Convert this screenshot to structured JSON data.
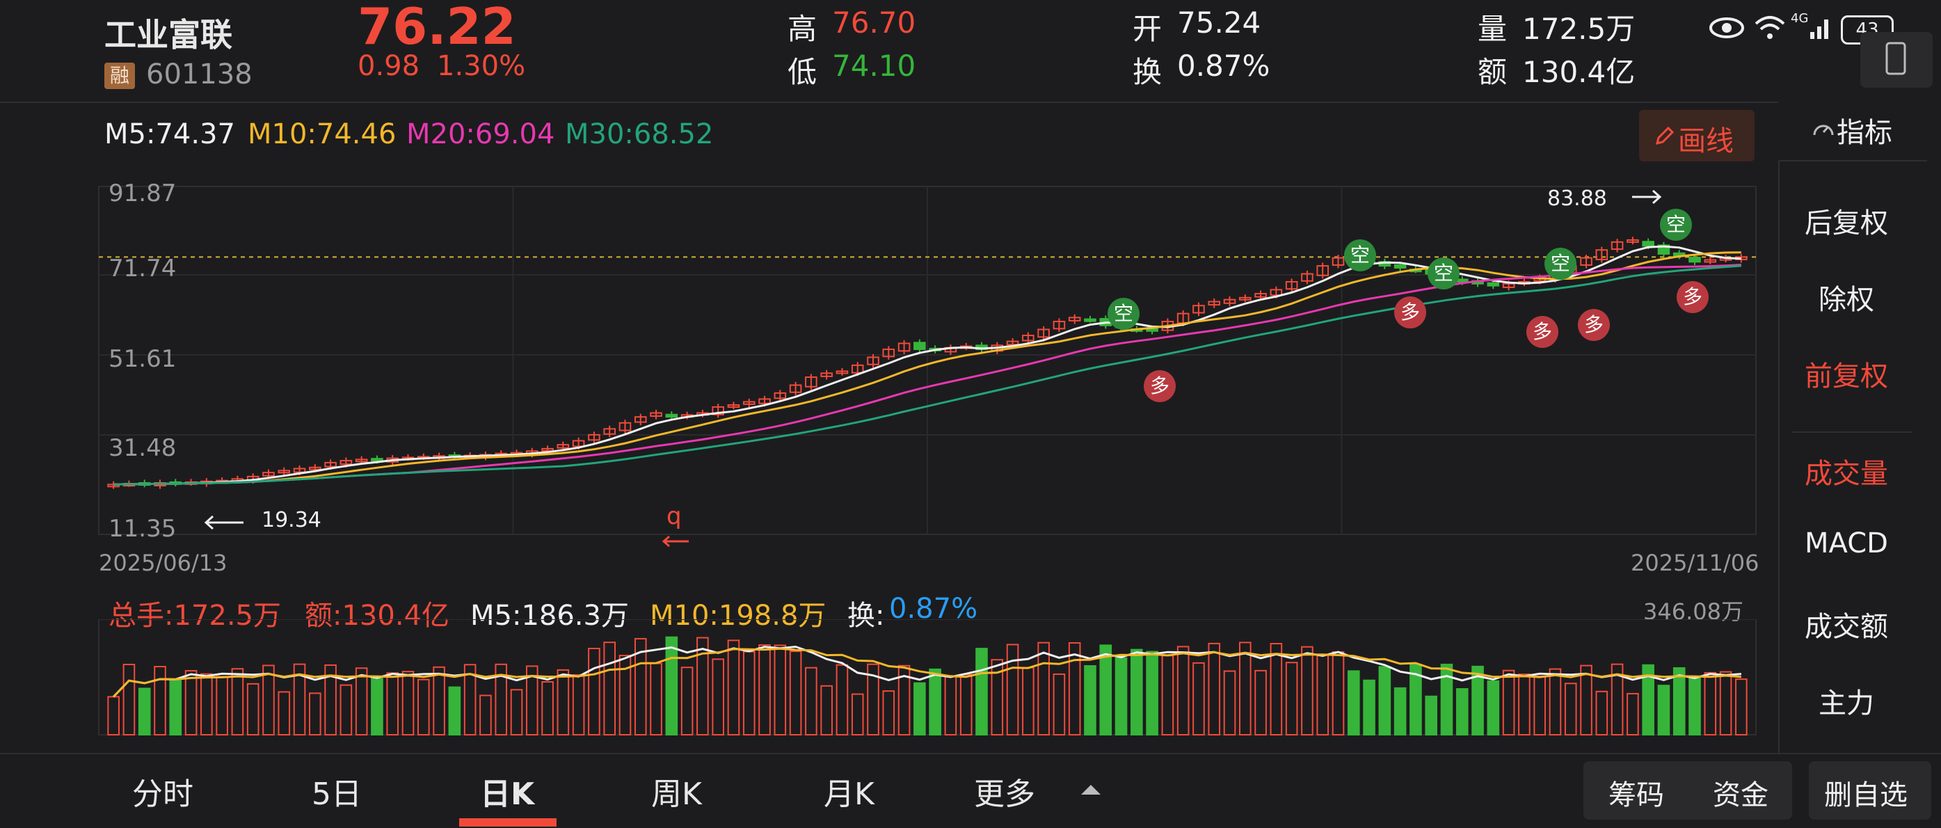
{
  "header": {
    "stock_name": "工业富联",
    "margin_badge": "融",
    "stock_code": "601138",
    "price": "76.22",
    "change": "0.98",
    "change_pct": "1.30%",
    "high_label": "高",
    "high_value": "76.70",
    "low_label": "低",
    "low_value": "74.10",
    "open_label": "开",
    "open_value": "75.24",
    "turnover_label": "换",
    "turnover_value": "0.87%",
    "volume_label": "量",
    "volume_value": "172.5万",
    "amount_label": "额",
    "amount_value": "130.4亿"
  },
  "status_bar": {
    "battery": "43",
    "signal": "4G"
  },
  "ma_legend": {
    "m5": "M5:74.37",
    "m10": "M10:74.46",
    "m20": "M20:69.04",
    "m30": "M30:68.52"
  },
  "toolbar": {
    "draw_label": "画线",
    "indicator_label": "指标"
  },
  "sidebar": {
    "items": [
      "后复权",
      "除权",
      "前复权",
      "成交量",
      "MACD",
      "成交额",
      "主力"
    ]
  },
  "chart_data": [
    {
      "type": "candlestick",
      "y_ticks": [
        "91.87",
        "71.74",
        "51.61",
        "31.48",
        "11.35"
      ],
      "ylim": [
        11.35,
        91.87
      ],
      "x_start": "2025/06/13",
      "x_end": "2025/11/06",
      "high_annotation": "83.88",
      "low_annotation": "19.34",
      "marker_q": "q",
      "signals_long": "多",
      "signals_short": "空",
      "close": [
        19,
        19.2,
        19.1,
        19.4,
        19.3,
        19.6,
        19.8,
        20,
        20.4,
        21,
        22,
        22.5,
        23,
        23.3,
        24.5,
        25,
        25.3,
        25.1,
        25.6,
        25.8,
        26,
        26.2,
        26.1,
        26.3,
        26.5,
        26.8,
        27,
        27.4,
        28,
        29,
        30,
        31.5,
        33,
        34.5,
        36,
        37,
        36,
        36.5,
        37,
        38.5,
        39,
        39.8,
        40.5,
        42,
        44,
        46,
        47,
        47.5,
        49,
        51,
        53,
        54.5,
        53,
        52.8,
        53.4,
        53.8,
        53,
        54,
        55,
        56.5,
        58,
        60,
        61,
        60.5,
        59,
        58.5,
        58,
        57.6,
        60,
        62,
        64,
        65,
        65.5,
        66,
        67,
        68,
        70,
        72,
        74,
        76,
        75.5,
        74.8,
        74,
        73.5,
        73,
        72,
        71,
        70,
        69.5,
        69,
        69.5,
        70,
        71,
        72,
        74,
        76,
        78,
        80,
        80.5,
        79,
        77,
        76.5,
        75,
        75.5,
        76,
        76.22
      ],
      "volume_lot_label": "总手:172.5万",
      "volume_amount_label": "额:130.4亿",
      "volume_m5": "M5:186.3万",
      "volume_m10": "M10:198.8万",
      "volume_turnover_label": "换:",
      "volume_turnover_value": "0.87%",
      "volume_max": "346.08万"
    }
  ],
  "tabs": [
    "分时",
    "5日",
    "日K",
    "周K",
    "月K",
    "更多"
  ],
  "bottom_buttons": {
    "chips": "筹码",
    "funds": "资金",
    "remove_watch": "删自选"
  }
}
